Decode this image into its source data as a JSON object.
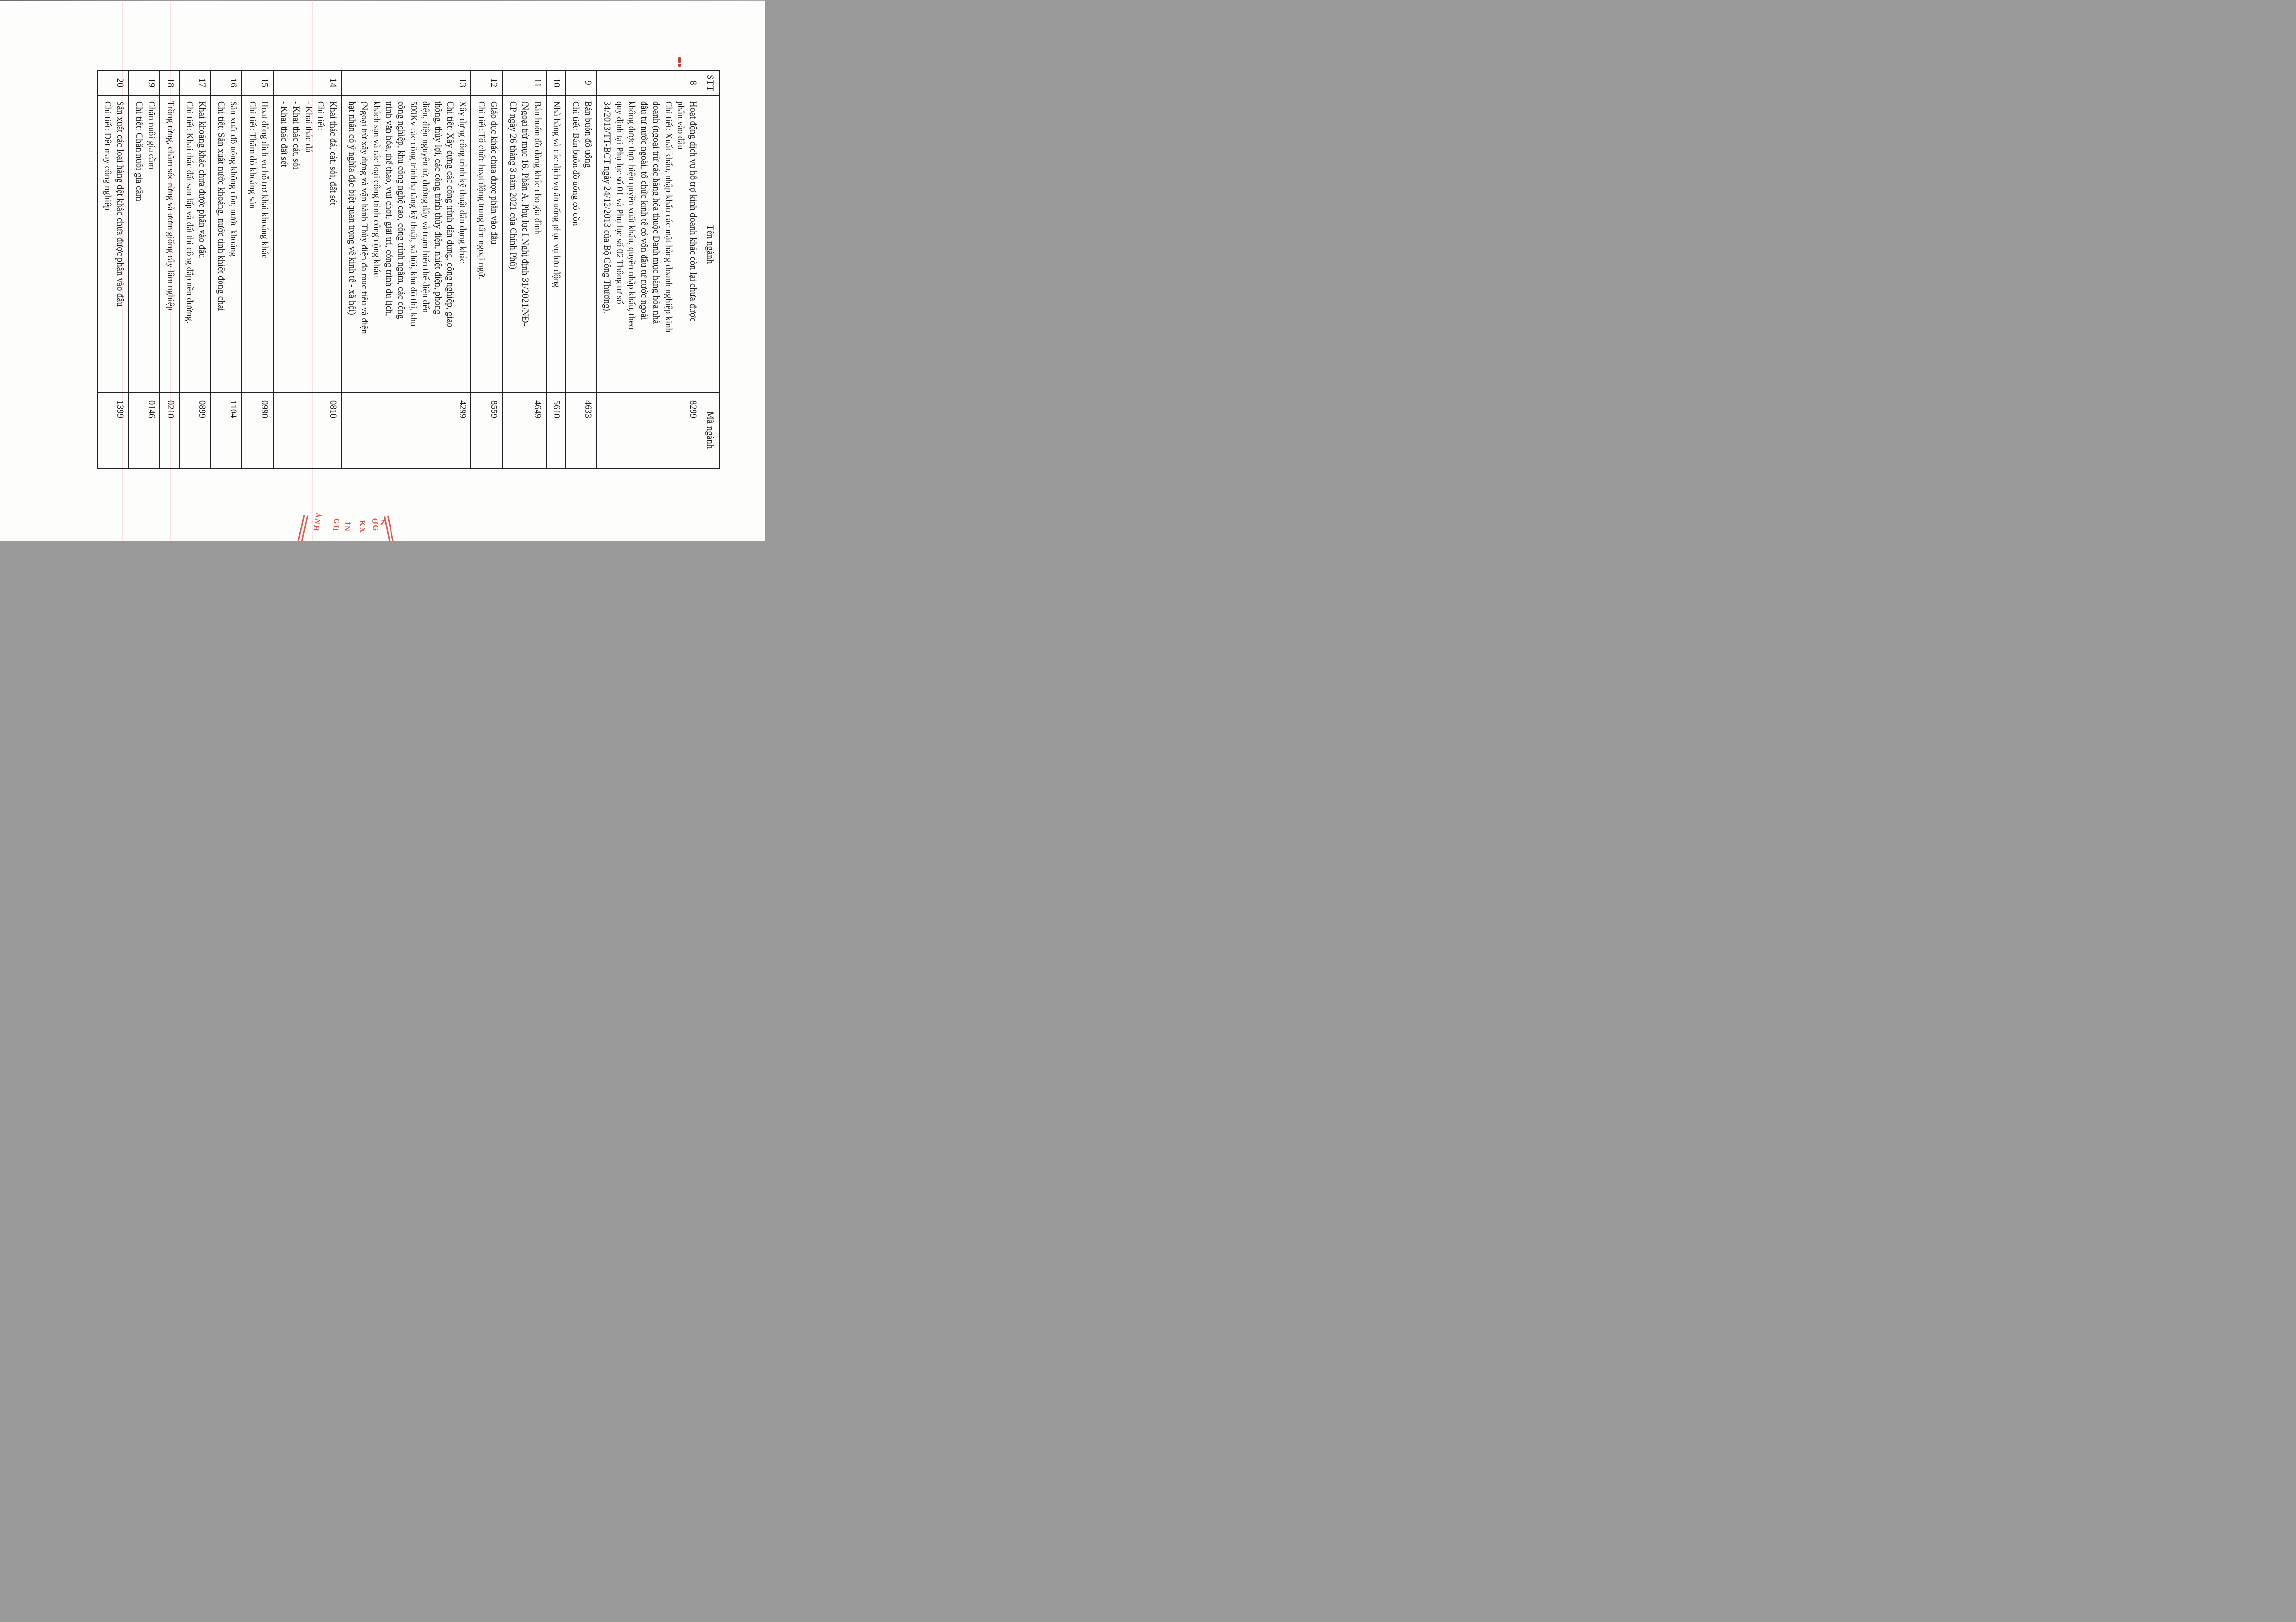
{
  "table": {
    "header": {
      "stt": "STT",
      "name": "Tên ngành",
      "code": "Mã ngành"
    },
    "rows": [
      {
        "stt": "8",
        "lines": [
          "Hoạt động dịch vụ hỗ trợ kinh doanh khác còn lại chưa được",
          "phân vào đâu",
          "Chi tiết: Xuất khẩu, nhập khẩu các mặt hàng doanh nghiệp kinh",
          "doanh (ngoại trừ các hàng hóa thuộc Danh mục hàng hóa nhà",
          "đầu tư nước ngoài, tổ chức kinh tế có vốn đầu tư nước ngoài",
          "không được thực hiện quyền xuất khẩu, quyền nhập khẩu, theo",
          "quy định tại Phụ lục số 01 và Phụ lục số 02 Thông tư số",
          "34/2013/TT-BCT ngày 24/12/2013 của Bộ Công Thương)."
        ],
        "code": "8299"
      },
      {
        "stt": "9",
        "lines": [
          "Bán buôn đồ uống",
          "Chi tiết: Bán buôn đồ uống có cồn"
        ],
        "code": "4633"
      },
      {
        "stt": "10",
        "lines": [
          "Nhà hàng và các dịch vụ ăn uống phục vụ lưu động"
        ],
        "code": "5610"
      },
      {
        "stt": "11",
        "lines": [
          "Bán buôn đồ dùng khác cho gia đình",
          "(Ngoại trừ mục 16, Phần A, Phụ lục I Nghị định 31/2021/NĐ-",
          "CP ngày 26 tháng 3 năm 2021 của Chính Phủ)"
        ],
        "code": "4649"
      },
      {
        "stt": "12",
        "lines": [
          "Giáo dục khác chưa được phân vào đâu",
          "Chi tiết: Tổ chức hoạt động trung tâm ngoại ngữ."
        ],
        "code": "8559"
      },
      {
        "stt": "13",
        "lines": [
          "Xây dựng công trình kỹ thuật dân dụng khác",
          "Chi tiết: Xây dựng các công trình dân dụng, công nghiệp, giao",
          "thông, thủy lợi, các công trình thủy điện, nhiệt điện, phong",
          "điện, điện nguyên tử, đường dây và trạm biến thế điện đến",
          "500Kv các công trình hạ tầng kỹ thuật, xã hội, khu đô thị, khu",
          "công nghiệp, khu công nghệ cao, công trình ngầm, các công",
          "trình văn hóa, thể thao, vui chơi, giải trí, công trình du lịch,",
          "khách sạn và các loại công trình công cộng khác",
          "(Ngoại trừ xây dựng và vận hành Thủy điện đa mục tiêu và điện",
          "hạt nhân có ý nghĩa đặc biệt quan trọng về kinh tế - xã hội)"
        ],
        "code": "4299"
      },
      {
        "stt": "14",
        "lines": [
          "Khai thác đá, cát, sỏi, đất sét",
          "Chi tiết:",
          "- Khai thác đá",
          "- Khai thác cát, sỏi",
          "- Khai thác đất sét"
        ],
        "code": "0810"
      },
      {
        "stt": "15",
        "lines": [
          "Hoạt động dịch vụ hỗ trợ khai khoáng khác",
          "Chi tiết: Thăm dò khoáng sản"
        ],
        "code": "0990"
      },
      {
        "stt": "16",
        "lines": [
          "Sản xuất đồ uống không cồn, nước khoáng",
          "Chi tiết: Sản xuất nước khoáng, nước tinh khiết đóng chai"
        ],
        "code": "1104"
      },
      {
        "stt": "17",
        "lines": [
          "Khai khoáng khác chưa được phân vào đâu",
          "Chi tiết: Khai thác đất san lấp và đất thi công đắp nền đường."
        ],
        "code": "0899"
      },
      {
        "stt": "18",
        "lines": [
          "Trồng rừng, chăm sóc rừng và ươm giống cây lâm nghiệp"
        ],
        "code": "0210"
      },
      {
        "stt": "19",
        "lines": [
          "Chăn nuôi gia cầm",
          "Chi tiết: Chăn nuôi gia cầm"
        ],
        "code": "0146"
      },
      {
        "stt": "20",
        "lines": [
          "Sản xuất các loại hàng dệt khác chưa được phân vào đâu",
          "Chi tiết: Dệt may công nghiệp"
        ],
        "code": "1399"
      }
    ]
  },
  "stamp": {
    "color": "#d8403b",
    "fragments": [
      "ÀNH",
      "GH",
      "ÌN",
      "KX",
      "ƠG",
      "N"
    ]
  },
  "artifacts": {
    "red_dash_color": "#cc3b36",
    "streak_color": "rgba(247,178,204,0.38)"
  }
}
